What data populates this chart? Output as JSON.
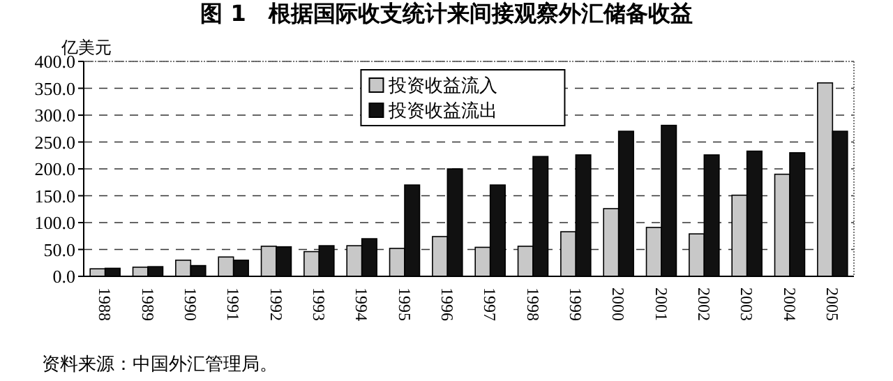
{
  "chart_data": {
    "type": "bar",
    "title": "图 1　根据国际收支统计来间接观察外汇储备收益",
    "ylabel": "亿美元",
    "categories": [
      "1988",
      "1989",
      "1990",
      "1991",
      "1992",
      "1993",
      "1994",
      "1995",
      "1996",
      "1997",
      "1998",
      "1999",
      "2000",
      "2001",
      "2002",
      "2003",
      "2004",
      "2005"
    ],
    "series": [
      {
        "name": "投资收益流入",
        "color": "#c8c8c8",
        "values": [
          14,
          17,
          30,
          36,
          56,
          46,
          57,
          52,
          74,
          54,
          56,
          83,
          126,
          91,
          79,
          151,
          190,
          360
        ]
      },
      {
        "name": "投资收益流出",
        "color": "#111111",
        "values": [
          15,
          18,
          20,
          30,
          55,
          57,
          70,
          170,
          200,
          170,
          223,
          226,
          270,
          281,
          226,
          233,
          230,
          270
        ]
      }
    ],
    "ylim": [
      0,
      400
    ],
    "yticks": [
      {
        "value": 0,
        "label": "0.0"
      },
      {
        "value": 50,
        "label": "50.0"
      },
      {
        "value": 100,
        "label": "100.0"
      },
      {
        "value": 150,
        "label": "150.0"
      },
      {
        "value": 200,
        "label": "200.0"
      },
      {
        "value": 250,
        "label": "250.0"
      },
      {
        "value": 300,
        "label": "300.0"
      },
      {
        "value": 350,
        "label": "350.0"
      },
      {
        "value": 400,
        "label": "400.0"
      }
    ],
    "grid": "y",
    "legend": "top",
    "annotations": [
      "资料来源：中国外汇管理局。"
    ]
  }
}
